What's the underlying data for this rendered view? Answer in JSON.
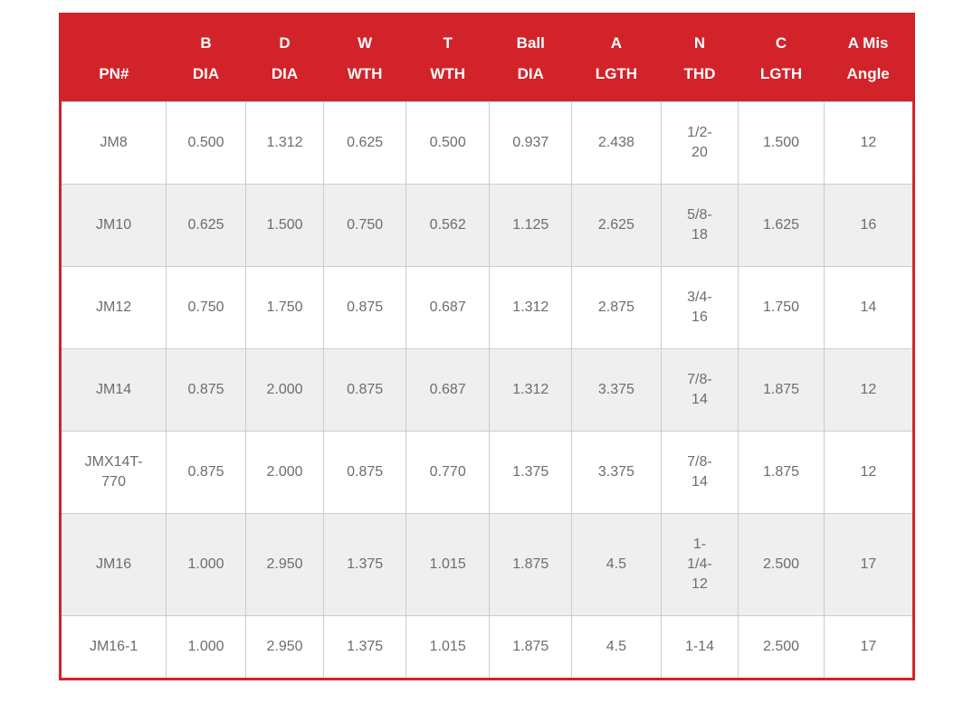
{
  "table": {
    "accent_color": "#d2232a",
    "alt_row_color": "#efefef",
    "grid_color": "#cccccc",
    "text_color": "#6d6d6d",
    "columns": [
      {
        "label": "PN#"
      },
      {
        "label": "B\nDIA"
      },
      {
        "label": "D\nDIA"
      },
      {
        "label": "W\nWTH"
      },
      {
        "label": "T\nWTH"
      },
      {
        "label": "Ball\nDIA"
      },
      {
        "label": "A\nLGTH"
      },
      {
        "label": "N\nTHD"
      },
      {
        "label": "C\nLGTH"
      },
      {
        "label": "A Mis\nAngle"
      }
    ],
    "rows": [
      {
        "cells": [
          "JM8",
          "0.500",
          "1.312",
          "0.625",
          "0.500",
          "0.937",
          "2.438",
          "1/2-\n20",
          "1.500",
          "12"
        ]
      },
      {
        "cells": [
          "JM10",
          "0.625",
          "1.500",
          "0.750",
          "0.562",
          "1.125",
          "2.625",
          "5/8-\n18",
          "1.625",
          "16"
        ]
      },
      {
        "cells": [
          "JM12",
          "0.750",
          "1.750",
          "0.875",
          "0.687",
          "1.312",
          "2.875",
          "3/4-\n16",
          "1.750",
          "14"
        ]
      },
      {
        "cells": [
          "JM14",
          "0.875",
          "2.000",
          "0.875",
          "0.687",
          "1.312",
          "3.375",
          "7/8-\n14",
          "1.875",
          "12"
        ]
      },
      {
        "cells": [
          "JMX14T-\n770",
          "0.875",
          "2.000",
          "0.875",
          "0.770",
          "1.375",
          "3.375",
          "7/8-\n14",
          "1.875",
          "12"
        ]
      },
      {
        "cells": [
          "JM16",
          "1.000",
          "2.950",
          "1.375",
          "1.015",
          "1.875",
          "4.5",
          "1-\n1/4-\n12",
          "2.500",
          "17"
        ]
      },
      {
        "cells": [
          "JM16-1",
          "1.000",
          "2.950",
          "1.375",
          "1.015",
          "1.875",
          "4.5",
          "1-14",
          "2.500",
          "17"
        ]
      }
    ]
  }
}
